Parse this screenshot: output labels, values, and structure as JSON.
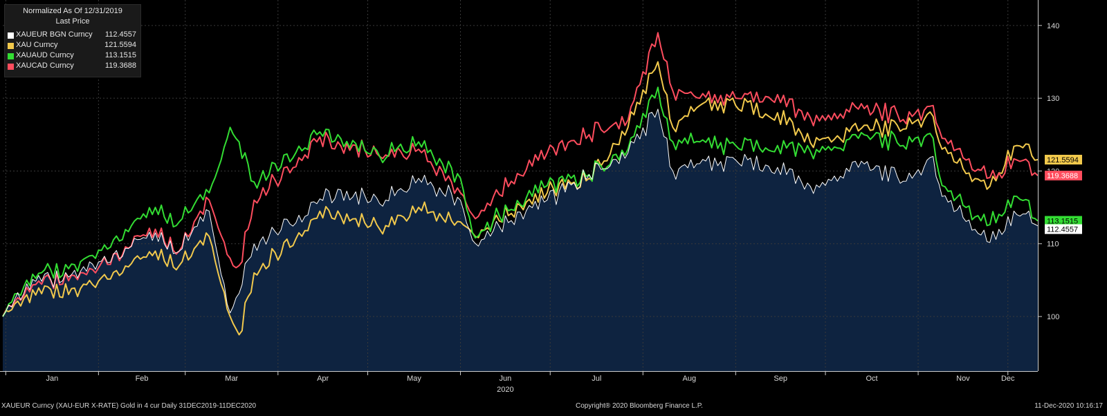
{
  "chart_data": {
    "type": "line",
    "title": "Normalized As Of 12/31/2019",
    "subtitle": "Last Price",
    "xlabel": "2020",
    "ylabel": "",
    "ylim": [
      92.5,
      143.5
    ],
    "yticks": [
      100,
      110,
      120,
      130,
      140
    ],
    "month_labels": [
      "Jan",
      "Feb",
      "Mar",
      "Apr",
      "May",
      "Jun",
      "Jul",
      "Aug",
      "Sep",
      "Oct",
      "Nov",
      "Dec"
    ],
    "grid": true,
    "legend": "top-left",
    "x_range": [
      "2019-12-31",
      "2020-12-11"
    ],
    "series": [
      {
        "name": "XAUEUR BGN Curncy",
        "last": "112.4557",
        "color": "#ffffff",
        "fill": "#0e2340",
        "x": [
          "2019-12-31",
          "2020-01-08",
          "2020-01-31",
          "2020-02-20",
          "2020-02-28",
          "2020-03-09",
          "2020-03-16",
          "2020-03-24",
          "2020-04-14",
          "2020-04-21",
          "2020-05-05",
          "2020-05-18",
          "2020-06-01",
          "2020-06-05",
          "2020-06-30",
          "2020-07-14",
          "2020-07-27",
          "2020-08-06",
          "2020-08-07",
          "2020-08-11",
          "2020-08-20",
          "2020-09-01",
          "2020-09-15",
          "2020-09-24",
          "2020-10-12",
          "2020-10-30",
          "2020-11-06",
          "2020-11-09",
          "2020-11-24",
          "2020-12-04",
          "2020-12-11"
        ],
        "values": [
          100,
          104.5,
          106.5,
          111.5,
          109,
          114.5,
          100.5,
          110,
          115.5,
          117.5,
          115.5,
          119,
          116,
          110.5,
          116,
          119.5,
          122.5,
          128.5,
          126.5,
          120,
          121,
          121.5,
          120.5,
          117.5,
          120.5,
          119,
          122,
          116.5,
          110.3,
          114,
          112.46
        ]
      },
      {
        "name": "XAU Curncy",
        "last": "121.5594",
        "color": "#f2c94c",
        "x": [
          "2019-12-31",
          "2020-01-08",
          "2020-01-31",
          "2020-02-20",
          "2020-02-28",
          "2020-03-09",
          "2020-03-16",
          "2020-03-19",
          "2020-03-24",
          "2020-04-14",
          "2020-04-21",
          "2020-05-05",
          "2020-05-18",
          "2020-06-01",
          "2020-06-05",
          "2020-06-30",
          "2020-07-14",
          "2020-07-27",
          "2020-08-06",
          "2020-08-07",
          "2020-08-11",
          "2020-08-20",
          "2020-09-01",
          "2020-09-15",
          "2020-09-24",
          "2020-10-12",
          "2020-10-30",
          "2020-11-06",
          "2020-11-09",
          "2020-11-24",
          "2020-12-04",
          "2020-12-11"
        ],
        "values": [
          100,
          103,
          104,
          109,
          107,
          111,
          100,
          97.5,
          106,
          113.5,
          114.5,
          112,
          115,
          113,
          111.5,
          117,
          119,
          126,
          135,
          133,
          126,
          129,
          129,
          128,
          124,
          125.5,
          126.5,
          127.5,
          123,
          117.5,
          123.5,
          121.56
        ]
      },
      {
        "name": "XAUAUD Curncy",
        "last": "113.1515",
        "color": "#33dd33",
        "x": [
          "2019-12-31",
          "2020-01-08",
          "2020-01-31",
          "2020-02-20",
          "2020-02-28",
          "2020-03-09",
          "2020-03-16",
          "2020-03-19",
          "2020-03-24",
          "2020-04-14",
          "2020-04-21",
          "2020-05-05",
          "2020-05-18",
          "2020-06-01",
          "2020-06-05",
          "2020-06-30",
          "2020-07-14",
          "2020-07-27",
          "2020-08-06",
          "2020-08-07",
          "2020-08-11",
          "2020-08-20",
          "2020-09-01",
          "2020-09-15",
          "2020-09-24",
          "2020-10-12",
          "2020-10-30",
          "2020-11-06",
          "2020-11-09",
          "2020-11-24",
          "2020-12-04",
          "2020-12-11"
        ],
        "values": [
          100,
          105,
          108,
          115,
          113,
          117,
          126,
          124,
          118.5,
          125,
          125,
          122,
          124,
          119,
          111.5,
          118,
          119.5,
          123,
          131.5,
          129,
          124,
          124,
          123.5,
          123.5,
          122.5,
          124.5,
          124,
          124.5,
          118,
          112.5,
          116.5,
          113.15
        ]
      },
      {
        "name": "XAUCAD Curncy",
        "last": "119.3688",
        "color": "#ff4d5e",
        "x": [
          "2019-12-31",
          "2020-01-08",
          "2020-01-31",
          "2020-02-20",
          "2020-02-28",
          "2020-03-09",
          "2020-03-16",
          "2020-03-19",
          "2020-03-24",
          "2020-04-14",
          "2020-04-21",
          "2020-05-05",
          "2020-05-18",
          "2020-06-01",
          "2020-06-05",
          "2020-06-30",
          "2020-07-14",
          "2020-07-27",
          "2020-08-06",
          "2020-08-07",
          "2020-08-11",
          "2020-08-20",
          "2020-09-01",
          "2020-09-15",
          "2020-09-24",
          "2020-10-12",
          "2020-10-30",
          "2020-11-06",
          "2020-11-09",
          "2020-11-24",
          "2020-12-04",
          "2020-12-11"
        ],
        "values": [
          100,
          104,
          106,
          112,
          109,
          116,
          108,
          107,
          116,
          124,
          124,
          122,
          123,
          117,
          114,
          122.5,
          125,
          127,
          139,
          137,
          131,
          130,
          130,
          130.5,
          127,
          128.5,
          127.5,
          129,
          124.5,
          119,
          121.5,
          119.37
        ]
      }
    ]
  },
  "footer": {
    "left": "XAUEUR Curncy (XAU-EUR X-RATE) Gold in 4 cur  Daily 31DEC2019-11DEC2020",
    "center": "Copyright® 2020 Bloomberg Finance L.P.",
    "right": "11-Dec-2020 10:16:17"
  }
}
